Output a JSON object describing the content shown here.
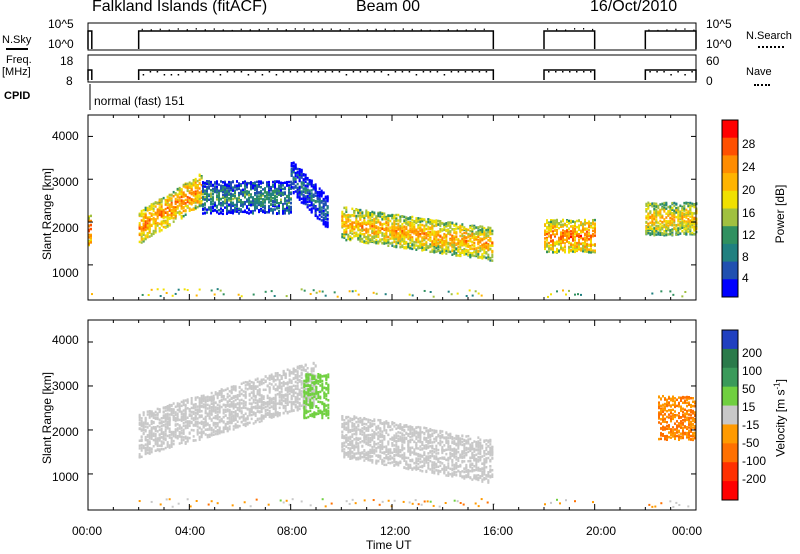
{
  "header": {
    "title": "Falkland Islands (fitACF)",
    "beam": "Beam 00",
    "date": "16/Oct/2010"
  },
  "panels": {
    "nsky": {
      "label": "N.Sky",
      "ticks": [
        "10^5",
        "10^0"
      ],
      "right_label": "N.Search",
      "right_ticks": [
        "10^5",
        "10^0"
      ]
    },
    "freq": {
      "label_line1": "Freq.",
      "label_line2": "[MHz]",
      "ticks": [
        "18",
        "8"
      ],
      "right_label": "Nave",
      "right_ticks": [
        "60",
        "0"
      ]
    },
    "cpid": {
      "label": "CPID",
      "mode": "normal (fast) 151"
    }
  },
  "axes": {
    "ylabel": "Slant Range [km]",
    "yticks": [
      "4000",
      "3000",
      "2000",
      "1000"
    ],
    "xlabel": "Time UT",
    "xticks": [
      "00:00",
      "04:00",
      "08:00",
      "12:00",
      "16:00",
      "20:00",
      "00:00"
    ]
  },
  "power_scale": {
    "label": "Power [dB]",
    "ticks": [
      "28",
      "24",
      "20",
      "16",
      "12",
      "8",
      "4"
    ],
    "colors": [
      "#ff0000",
      "#ff5000",
      "#ff8c00",
      "#ffb400",
      "#f0e000",
      "#a0c040",
      "#309060",
      "#208080",
      "#2050b0",
      "#0000ff"
    ]
  },
  "velocity_scale": {
    "label_main": "Velocity [m s",
    "label_sup": "-1",
    "label_end": "]",
    "ticks": [
      "200",
      "100",
      "50",
      "15",
      "-15",
      "-50",
      "-100",
      "-200"
    ],
    "colors": [
      "#2040c0",
      "#2a7a4a",
      "#3a9a5a",
      "#70d040",
      "#c8c8c8",
      "#ff9a00",
      "#ff7000",
      "#ff3000",
      "#ff0000"
    ]
  },
  "chart_data": {
    "type": "heatmap",
    "x_unit": "hours UT",
    "xlim": [
      0,
      24
    ],
    "ylim": [
      180,
      4500
    ],
    "data_windows_hours": [
      [
        0.0,
        0.15
      ],
      [
        2.0,
        16.0
      ],
      [
        18.0,
        20.0
      ],
      [
        22.0,
        24.0
      ]
    ],
    "power_features": [
      {
        "start_h": 0.0,
        "end_h": 0.15,
        "range_km": 1850,
        "power_db": 28
      },
      {
        "start_h": 2.0,
        "end_h": 4.5,
        "range_km": 1850,
        "power_db": 26
      },
      {
        "start_h": 4.5,
        "end_h": 8.0,
        "range_km": 2600,
        "power_db": 12
      },
      {
        "start_h": 8.0,
        "end_h": 9.5,
        "range_km": 3000,
        "power_db": 8
      },
      {
        "start_h": 10.0,
        "end_h": 16.0,
        "range_km": 1800,
        "power_db": 24
      },
      {
        "start_h": 18.0,
        "end_h": 20.0,
        "range_km": 1700,
        "power_db": 26
      },
      {
        "start_h": 22.0,
        "end_h": 24.0,
        "range_km": 2100,
        "power_db": 22
      }
    ],
    "velocity_features": [
      {
        "start_h": 2.0,
        "end_h": 9.0,
        "range_km": 2300,
        "velocity_ms": 0
      },
      {
        "start_h": 8.5,
        "end_h": 9.5,
        "range_km": 2800,
        "velocity_ms": 30
      },
      {
        "start_h": 10.0,
        "end_h": 16.0,
        "range_km": 1400,
        "velocity_ms": 0
      },
      {
        "start_h": 22.5,
        "end_h": 24.0,
        "range_km": 2300,
        "velocity_ms": -50
      }
    ]
  }
}
